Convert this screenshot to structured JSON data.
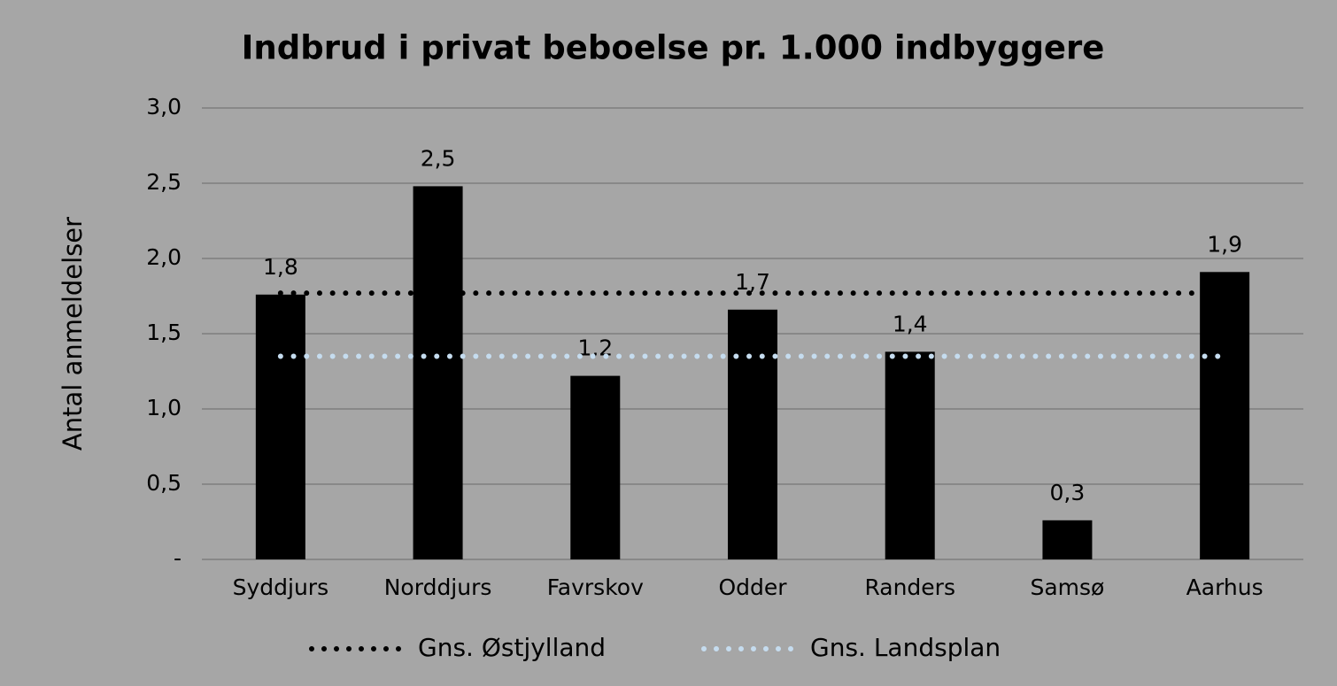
{
  "chart_data": {
    "type": "bar",
    "title": "Indbrud i privat beboelse pr. 1.000 indbyggere",
    "y_label": "Antal anmeldelser",
    "categories": [
      "Syddjurs",
      "Norddjurs",
      "Favrskov",
      "Odder",
      "Randers",
      "Samsø",
      "Aarhus"
    ],
    "values": [
      1.76,
      2.48,
      1.22,
      1.66,
      1.38,
      0.26,
      1.91
    ],
    "value_labels": [
      "1,8",
      "2,5",
      "1,2",
      "1,7",
      "1,4",
      "0,3",
      "1,9"
    ],
    "color": "#000000",
    "lines": [
      {
        "name": "Gns. Østjylland",
        "color": "#000000",
        "value": 1.77
      },
      {
        "name": "Gns. Landsplan",
        "color": "#c5dcef",
        "value": 1.35
      }
    ],
    "ylim": [
      0,
      3
    ],
    "yticks": [
      {
        "value": 0,
        "label": "-"
      },
      {
        "value": 0.5,
        "label": "0,5"
      },
      {
        "value": 1,
        "label": "1,0"
      },
      {
        "value": 1.5,
        "label": "1,5"
      },
      {
        "value": 2,
        "label": "2,0"
      },
      {
        "value": 2.5,
        "label": "2,5"
      },
      {
        "value": 3,
        "label": "3,0"
      }
    ],
    "grid": true,
    "legend": "bottom"
  }
}
